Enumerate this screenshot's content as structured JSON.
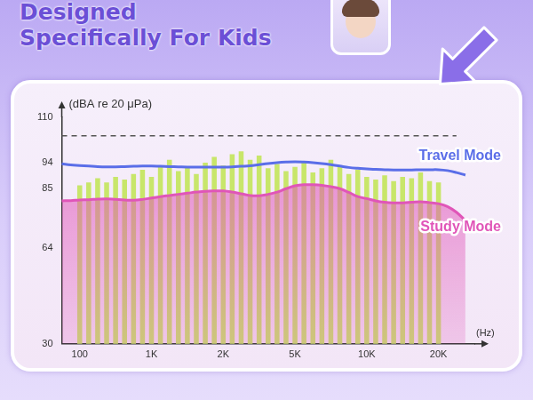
{
  "header": {
    "title_lines": [
      "Designed",
      "Specifically For Kids"
    ]
  },
  "chart_data": {
    "type": "line",
    "y_label": "(dBA re 20 μPa)",
    "x_label": "(Hz)",
    "categories": [
      null,
      null,
      "100",
      null,
      null,
      null,
      null,
      null,
      null,
      null,
      "1K",
      null,
      null,
      null,
      null,
      null,
      null,
      null,
      "2K",
      null,
      null,
      null,
      null,
      null,
      null,
      null,
      "5K",
      null,
      null,
      null,
      null,
      null,
      null,
      null,
      "10K",
      null,
      null,
      null,
      null,
      null,
      null,
      null,
      "20K",
      null,
      null,
      null,
      null
    ],
    "series": [
      {
        "type": "bar",
        "color": "#c8e66a",
        "values": [
          null,
          null,
          86,
          87,
          88.5,
          87,
          89,
          88,
          90,
          91.5,
          89,
          93,
          95,
          91,
          92.5,
          90,
          94,
          96,
          93,
          97,
          98,
          95,
          96.5,
          92,
          93.5,
          91,
          92.5,
          94,
          90.5,
          92,
          95,
          93,
          90,
          91.5,
          89,
          88,
          89.5,
          87.5,
          89,
          88.5,
          90.5,
          87.5,
          87,
          null,
          null,
          null,
          null
        ]
      },
      {
        "type": "area",
        "name": "Study Mode",
        "color": "#e055b8",
        "values": [
          80.5,
          80.6,
          80.8,
          80.9,
          81.1,
          81.2,
          81.0,
          80.8,
          80.7,
          81.0,
          81.5,
          82.0,
          82.4,
          82.8,
          83.2,
          83.6,
          83.9,
          84.0,
          84.0,
          83.6,
          83.0,
          82.4,
          82.3,
          82.8,
          83.6,
          84.8,
          85.8,
          86.2,
          86.2,
          86.0,
          85.5,
          84.8,
          83.5,
          82.0,
          81.3,
          80.5,
          80.0,
          79.8,
          79.8,
          80.0,
          80.2,
          79.9,
          79.5,
          78.5,
          76.5,
          73.5,
          null
        ]
      },
      {
        "type": "line",
        "name": "Travel Mode",
        "color": "#5a6ee8",
        "values": [
          93.6,
          93.2,
          93.0,
          92.8,
          92.6,
          92.5,
          92.5,
          92.6,
          92.7,
          92.8,
          92.8,
          92.7,
          92.6,
          92.5,
          92.4,
          92.4,
          92.4,
          92.4,
          92.4,
          92.5,
          92.7,
          92.9,
          93.3,
          93.7,
          94.0,
          94.2,
          94.3,
          94.2,
          94.0,
          93.7,
          93.3,
          92.8,
          92.3,
          92.0,
          91.8,
          91.6,
          91.5,
          91.4,
          91.4,
          91.4,
          91.5,
          91.5,
          91.5,
          91.2,
          90.5,
          89.6,
          null
        ]
      },
      {
        "type": "line",
        "line_style": "dashed",
        "color": "#555555",
        "values": [
          103.5,
          103.5,
          103.5,
          103.5,
          103.5,
          103.5,
          103.5,
          103.5,
          103.5,
          103.5,
          103.5,
          103.5,
          103.5,
          103.5,
          103.5,
          103.5,
          103.5,
          103.5,
          103.5,
          103.5,
          103.5,
          103.5,
          103.5,
          103.5,
          103.5,
          103.5,
          103.5,
          103.5,
          103.5,
          103.5,
          103.5,
          103.5,
          103.5,
          103.5,
          103.5,
          103.5,
          103.5,
          103.5,
          103.5,
          103.5,
          103.5,
          103.5,
          103.5,
          103.5,
          103.5,
          null,
          null
        ]
      }
    ],
    "ylim": [
      30,
      110
    ],
    "yticks": [
      30,
      64,
      85,
      94,
      110
    ],
    "grid": false
  }
}
